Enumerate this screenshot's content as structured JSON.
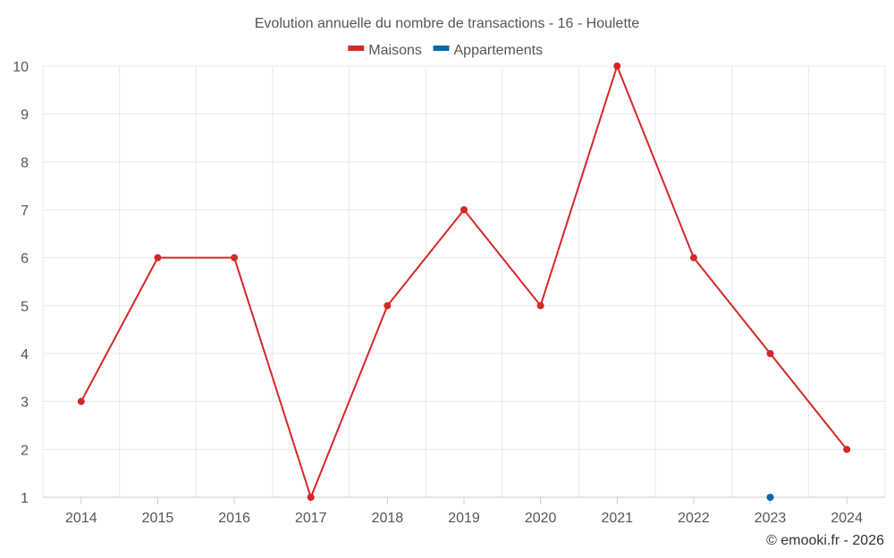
{
  "chart_data": {
    "type": "line",
    "title": "Evolution annuelle du nombre de transactions - 16 - Houlette",
    "categories": [
      "2014",
      "2015",
      "2016",
      "2017",
      "2018",
      "2019",
      "2020",
      "2021",
      "2022",
      "2023",
      "2024"
    ],
    "series": [
      {
        "name": "Maisons",
        "color": "#d62728",
        "values": [
          3,
          6,
          6,
          1,
          5,
          7,
          5,
          10,
          6,
          4,
          2
        ]
      },
      {
        "name": "Appartements",
        "color": "#0868a8",
        "values": [
          null,
          null,
          null,
          null,
          null,
          null,
          null,
          null,
          null,
          1,
          null
        ]
      }
    ],
    "ylim": [
      1,
      10
    ],
    "yticks": [
      1,
      2,
      3,
      4,
      5,
      6,
      7,
      8,
      9,
      10
    ],
    "xlabel": "",
    "ylabel": "",
    "grid": true,
    "legend_position": "top-center"
  },
  "credit": "© emooki.fr - 2026"
}
